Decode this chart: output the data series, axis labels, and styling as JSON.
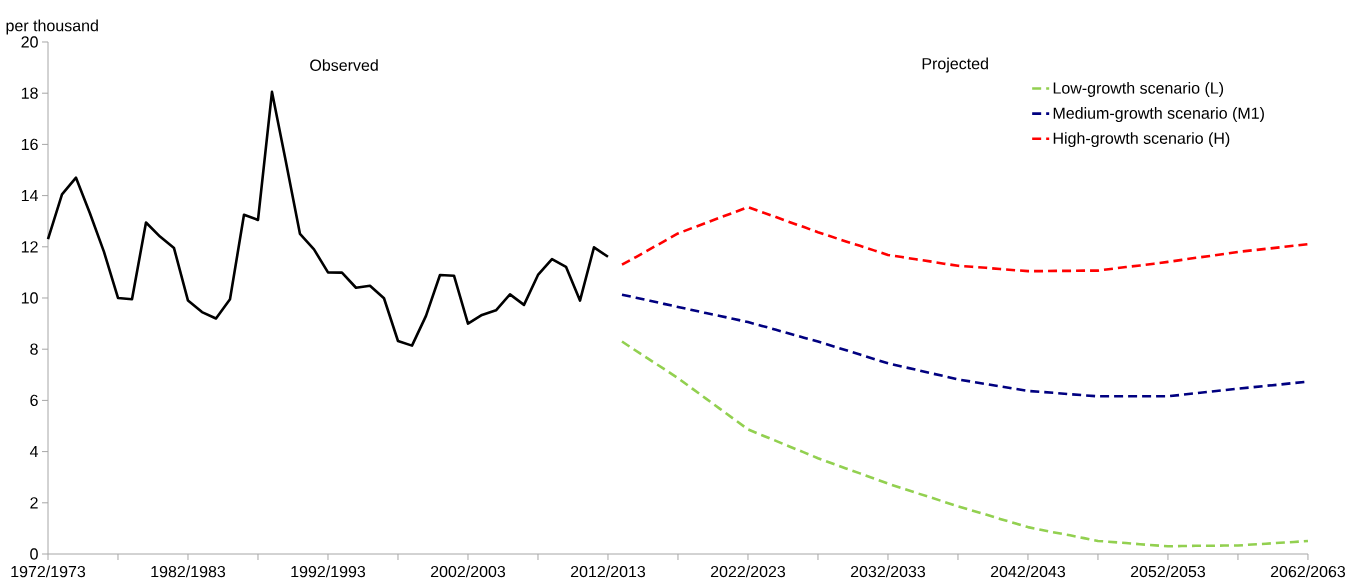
{
  "chart_data": {
    "type": "line",
    "ylabel": "per thousand",
    "annotations": [
      "Observed",
      "Projected"
    ],
    "categories": [
      "1972/1973",
      null,
      null,
      null,
      null,
      null,
      null,
      null,
      null,
      null,
      "1982/1983",
      null,
      null,
      null,
      null,
      null,
      null,
      null,
      null,
      null,
      "1992/1993",
      null,
      null,
      null,
      null,
      null,
      null,
      null,
      null,
      null,
      "2002/2003",
      null,
      null,
      null,
      null,
      null,
      null,
      null,
      null,
      null,
      "2012/2013",
      null,
      null,
      null,
      null,
      null,
      null,
      null,
      null,
      null,
      "2022/2023",
      null,
      null,
      null,
      null,
      null,
      null,
      null,
      null,
      null,
      "2032/2033",
      null,
      null,
      null,
      null,
      null,
      null,
      null,
      null,
      null,
      "2042/2043",
      null,
      null,
      null,
      null,
      null,
      null,
      null,
      null,
      null,
      "2052/2053",
      null,
      null,
      null,
      null,
      null,
      null,
      null,
      null,
      null,
      "2062/2063"
    ],
    "ylim": [
      0,
      20
    ],
    "yticks": [
      0,
      2,
      4,
      6,
      8,
      10,
      12,
      14,
      16,
      18,
      20
    ],
    "grid": false,
    "legend": "top right",
    "marker": "none",
    "series": [
      {
        "color": "#000000",
        "line_style": "solid",
        "values": [
          12.3,
          14.05,
          14.7,
          13.3,
          11.8,
          10.0,
          9.95,
          12.95,
          12.4,
          11.95,
          9.9,
          9.45,
          9.2,
          9.95,
          13.25,
          13.05,
          18.05,
          15.3,
          12.5,
          11.9,
          11.0,
          10.99,
          10.4,
          10.48,
          9.99,
          8.32,
          8.14,
          9.3,
          10.9,
          10.87,
          9.0,
          9.34,
          9.52,
          10.14,
          9.73,
          10.9,
          11.52,
          11.22,
          9.9,
          11.98,
          11.61,
          null,
          null,
          null,
          null,
          null,
          null,
          null,
          null,
          null,
          null,
          null,
          null,
          null,
          null,
          null,
          null,
          null,
          null,
          null,
          null,
          null,
          null,
          null,
          null,
          null,
          null,
          null,
          null,
          null,
          null,
          null,
          null,
          null,
          null,
          null,
          null,
          null,
          null,
          null,
          null,
          null,
          null,
          null,
          null,
          null,
          null,
          null,
          null,
          null,
          null
        ]
      },
      {
        "name": "Low-growth scenario (L)",
        "color": "#92d050",
        "line_style": "dashed",
        "values": [
          null,
          null,
          null,
          null,
          null,
          null,
          null,
          null,
          null,
          null,
          null,
          null,
          null,
          null,
          null,
          null,
          null,
          null,
          null,
          null,
          null,
          null,
          null,
          null,
          null,
          null,
          null,
          null,
          null,
          null,
          null,
          null,
          null,
          null,
          null,
          null,
          null,
          null,
          null,
          null,
          null,
          8.3,
          7.94,
          7.58,
          7.23,
          6.87,
          6.47,
          6.07,
          5.67,
          5.27,
          4.87,
          4.64,
          4.42,
          4.19,
          3.97,
          3.74,
          3.54,
          3.34,
          3.15,
          2.95,
          2.75,
          2.57,
          2.39,
          2.22,
          2.04,
          1.86,
          1.7,
          1.54,
          1.37,
          1.21,
          1.05,
          0.94,
          0.83,
          0.73,
          0.62,
          0.51,
          0.47,
          0.43,
          0.38,
          0.34,
          0.3,
          0.31,
          0.32,
          0.32,
          0.33,
          0.33,
          0.37,
          0.4,
          0.44,
          0.47,
          0.51
        ]
      },
      {
        "name": "Medium-growth scenario (M1)",
        "color": "#000080",
        "line_style": "dashed",
        "values": [
          null,
          null,
          null,
          null,
          null,
          null,
          null,
          null,
          null,
          null,
          null,
          null,
          null,
          null,
          null,
          null,
          null,
          null,
          null,
          null,
          null,
          null,
          null,
          null,
          null,
          null,
          null,
          null,
          null,
          null,
          null,
          null,
          null,
          null,
          null,
          null,
          null,
          null,
          null,
          null,
          null,
          10.13,
          10.01,
          9.89,
          9.77,
          9.65,
          9.53,
          9.41,
          9.3,
          9.18,
          9.06,
          8.91,
          8.76,
          8.6,
          8.45,
          8.3,
          8.13,
          7.96,
          7.79,
          7.62,
          7.45,
          7.32,
          7.2,
          7.07,
          6.95,
          6.82,
          6.73,
          6.64,
          6.55,
          6.46,
          6.37,
          6.33,
          6.29,
          6.24,
          6.2,
          6.16,
          6.16,
          6.16,
          6.16,
          6.16,
          6.16,
          6.22,
          6.28,
          6.34,
          6.4,
          6.46,
          6.51,
          6.57,
          6.62,
          6.68,
          6.73
        ]
      },
      {
        "name": "High-growth scenario (H)",
        "color": "#ff0000",
        "line_style": "dashed",
        "values": [
          null,
          null,
          null,
          null,
          null,
          null,
          null,
          null,
          null,
          null,
          null,
          null,
          null,
          null,
          null,
          null,
          null,
          null,
          null,
          null,
          null,
          null,
          null,
          null,
          null,
          null,
          null,
          null,
          null,
          null,
          null,
          null,
          null,
          null,
          null,
          null,
          null,
          null,
          null,
          null,
          null,
          11.3,
          11.6,
          11.91,
          12.21,
          12.52,
          12.73,
          12.93,
          13.14,
          13.34,
          13.55,
          13.35,
          13.16,
          12.96,
          12.77,
          12.57,
          12.39,
          12.21,
          12.04,
          11.86,
          11.68,
          11.6,
          11.51,
          11.43,
          11.34,
          11.26,
          11.22,
          11.18,
          11.13,
          11.09,
          11.05,
          11.05,
          11.06,
          11.06,
          11.07,
          11.07,
          11.14,
          11.21,
          11.27,
          11.34,
          11.41,
          11.49,
          11.57,
          11.64,
          11.72,
          11.8,
          11.86,
          11.92,
          11.98,
          12.04,
          12.1
        ]
      }
    ]
  }
}
